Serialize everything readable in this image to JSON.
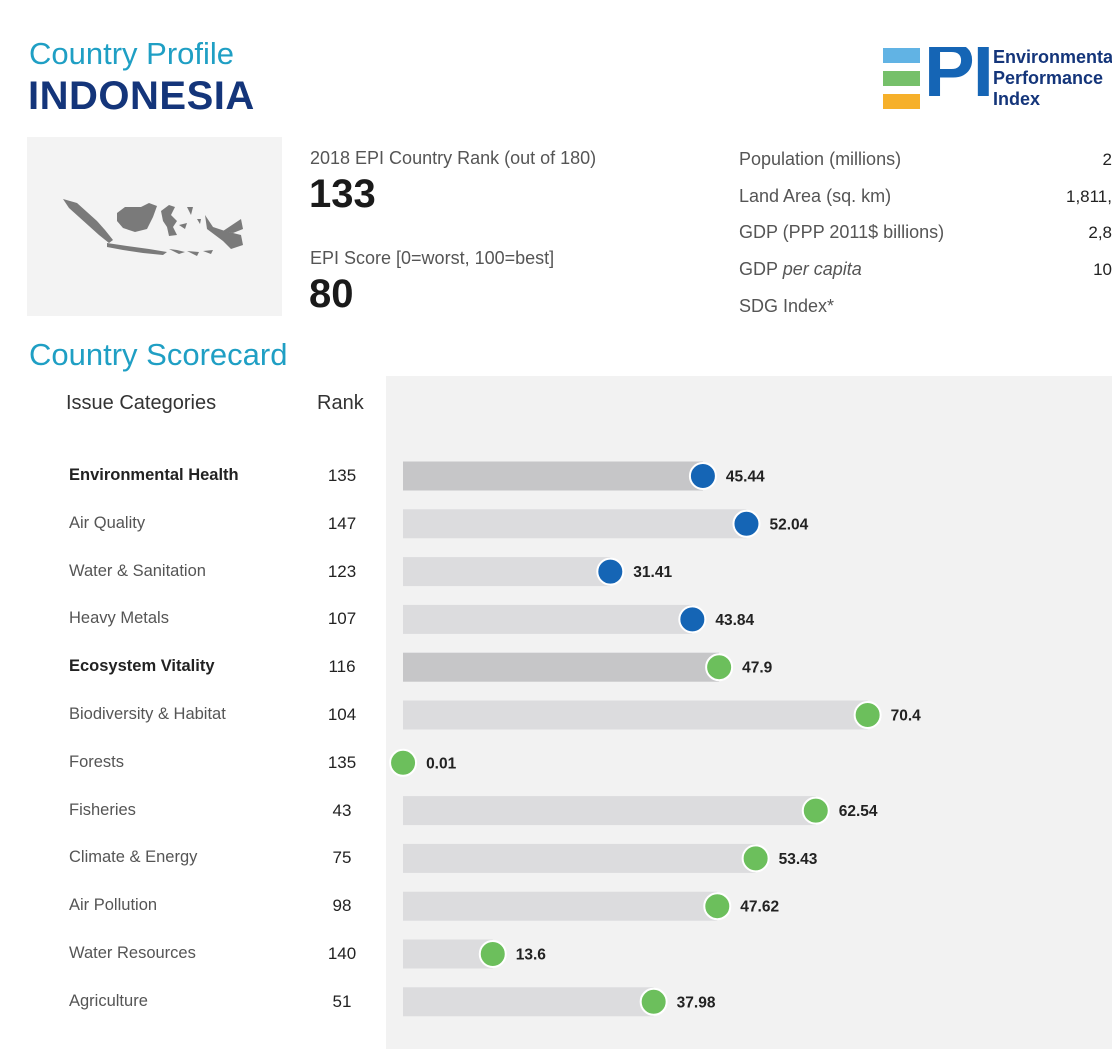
{
  "header": {
    "subtitle": "Country Profile",
    "country": "INDONESIA"
  },
  "logo": {
    "letters": "EPI",
    "line1": "Environmental",
    "line2": "Performance",
    "line3": "Index",
    "colors": [
      "#61b3e4",
      "#76c06a",
      "#f6b02a",
      "#1565b5"
    ]
  },
  "summary": {
    "rank_label": "2018 EPI Country Rank (out of 180)",
    "rank_value": "133",
    "score_label": "EPI Score [0=worst, 100=best]",
    "score_value": "80"
  },
  "stats": [
    {
      "label": "Population (millions)",
      "value": "2"
    },
    {
      "label_plain": "Land Area (sq. km)",
      "value": "1,811,"
    },
    {
      "label_plain": "GDP (PPP 2011$ billions)",
      "value": "2,8"
    },
    {
      "label_plain": "GDP ",
      "label_italic": "per capita",
      "value": "10"
    },
    {
      "label_plain": "SDG Index*",
      "value": ""
    }
  ],
  "scorecard": {
    "title": "Country Scorecard",
    "col_issue": "Issue Categories",
    "col_rank": "Rank"
  },
  "colors": {
    "environmental_health": "#1565b5",
    "ecosystem_vitality": "#6cbf5c",
    "parent_bar": "#c6c6c8",
    "child_bar": "#dcdcde",
    "accent": "#1f9fc4",
    "title": "#14357a"
  },
  "chart_data": {
    "type": "bar",
    "orientation": "horizontal",
    "xlim": [
      0,
      100
    ],
    "grid": false,
    "categories": [
      {
        "name": "Environmental Health",
        "rank": "135",
        "value": 45.44,
        "group": "Environmental Health",
        "parent": true
      },
      {
        "name": "Air Quality",
        "rank": "147",
        "value": 52.04,
        "group": "Environmental Health",
        "parent": false
      },
      {
        "name": "Water & Sanitation",
        "rank": "123",
        "value": 31.41,
        "group": "Environmental Health",
        "parent": false
      },
      {
        "name": "Heavy Metals",
        "rank": "107",
        "value": 43.84,
        "group": "Environmental Health",
        "parent": false
      },
      {
        "name": "Ecosystem Vitality",
        "rank": "116",
        "value": 47.9,
        "group": "Ecosystem Vitality",
        "parent": true
      },
      {
        "name": "Biodiversity & Habitat",
        "rank": "104",
        "value": 70.4,
        "group": "Ecosystem Vitality",
        "parent": false
      },
      {
        "name": "Forests",
        "rank": "135",
        "value": 0.01,
        "group": "Ecosystem Vitality",
        "parent": false
      },
      {
        "name": "Fisheries",
        "rank": "43",
        "value": 62.54,
        "group": "Ecosystem Vitality",
        "parent": false
      },
      {
        "name": "Climate & Energy",
        "rank": "75",
        "value": 53.43,
        "group": "Ecosystem Vitality",
        "parent": false
      },
      {
        "name": "Air Pollution",
        "rank": "98",
        "value": 47.62,
        "group": "Ecosystem Vitality",
        "parent": false
      },
      {
        "name": "Water Resources",
        "rank": "140",
        "value": 13.6,
        "group": "Ecosystem Vitality",
        "parent": false
      },
      {
        "name": "Agriculture",
        "rank": "51",
        "value": 37.98,
        "group": "Ecosystem Vitality",
        "parent": false
      }
    ]
  }
}
